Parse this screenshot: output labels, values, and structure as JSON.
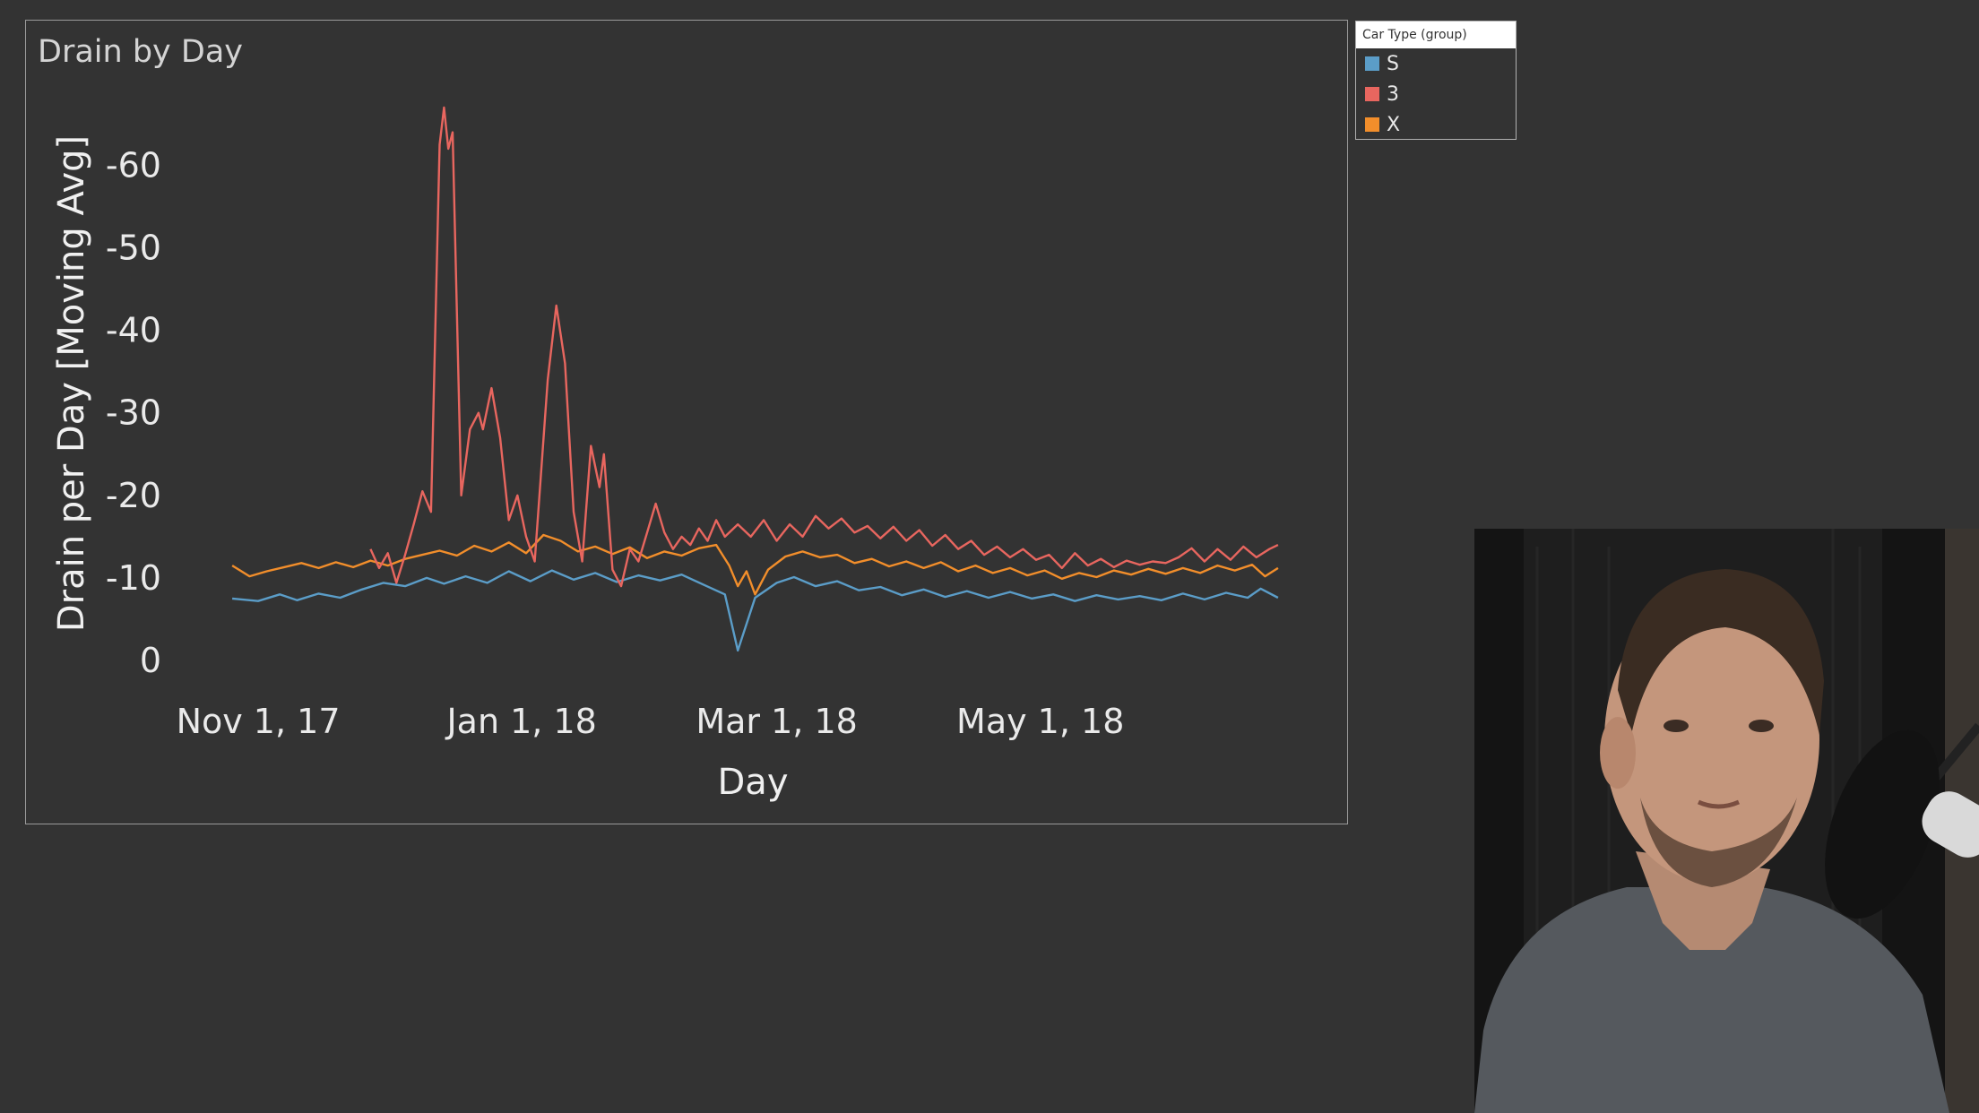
{
  "chart_data": {
    "type": "line",
    "title": "Drain by Day",
    "xlabel": "Day",
    "ylabel": "Drain per Day [Moving Avg]",
    "x_ticks": [
      "Nov 1, 17",
      "Jan 1, 18",
      "Mar 1, 18",
      "May 1, 18"
    ],
    "y_ticks": [
      "-60",
      "-50",
      "-40",
      "-30",
      "-20",
      "-10",
      "0"
    ],
    "y_tick_values": [
      -60,
      -50,
      -40,
      -30,
      -20,
      -10,
      0
    ],
    "ylim": [
      0,
      -67
    ],
    "xlim": [
      "2017-10-21",
      "2018-06-30"
    ],
    "grid": false,
    "legend_position": "top-right",
    "legend_title": "Car Type (group)",
    "series": [
      {
        "name": "S",
        "color": "#5b9dc8",
        "points": [
          [
            "2017-10-26",
            -7.5
          ],
          [
            "2017-11-01",
            -7.2
          ],
          [
            "2017-11-06",
            -8.0
          ],
          [
            "2017-11-10",
            -7.3
          ],
          [
            "2017-11-15",
            -8.1
          ],
          [
            "2017-11-20",
            -7.6
          ],
          [
            "2017-11-25",
            -8.6
          ],
          [
            "2017-11-30",
            -9.4
          ],
          [
            "2017-12-05",
            -9.0
          ],
          [
            "2017-12-10",
            -10.0
          ],
          [
            "2017-12-14",
            -9.3
          ],
          [
            "2017-12-19",
            -10.2
          ],
          [
            "2017-12-24",
            -9.4
          ],
          [
            "2017-12-29",
            -10.8
          ],
          [
            "2018-01-03",
            -9.6
          ],
          [
            "2018-01-08",
            -10.9
          ],
          [
            "2018-01-13",
            -9.8
          ],
          [
            "2018-01-18",
            -10.6
          ],
          [
            "2018-01-23",
            -9.5
          ],
          [
            "2018-01-28",
            -10.3
          ],
          [
            "2018-02-02",
            -9.7
          ],
          [
            "2018-02-07",
            -10.4
          ],
          [
            "2018-02-12",
            -9.2
          ],
          [
            "2018-02-17",
            -8.0
          ],
          [
            "2018-02-20",
            -1.2
          ],
          [
            "2018-02-24",
            -7.6
          ],
          [
            "2018-03-01",
            -9.4
          ],
          [
            "2018-03-05",
            -10.1
          ],
          [
            "2018-03-10",
            -9.0
          ],
          [
            "2018-03-15",
            -9.6
          ],
          [
            "2018-03-20",
            -8.5
          ],
          [
            "2018-03-25",
            -8.9
          ],
          [
            "2018-03-30",
            -7.9
          ],
          [
            "2018-04-04",
            -8.6
          ],
          [
            "2018-04-09",
            -7.7
          ],
          [
            "2018-04-14",
            -8.4
          ],
          [
            "2018-04-19",
            -7.6
          ],
          [
            "2018-04-24",
            -8.3
          ],
          [
            "2018-04-29",
            -7.5
          ],
          [
            "2018-05-04",
            -8.0
          ],
          [
            "2018-05-09",
            -7.2
          ],
          [
            "2018-05-14",
            -7.9
          ],
          [
            "2018-05-19",
            -7.4
          ],
          [
            "2018-05-24",
            -7.8
          ],
          [
            "2018-05-29",
            -7.3
          ],
          [
            "2018-06-03",
            -8.1
          ],
          [
            "2018-06-08",
            -7.4
          ],
          [
            "2018-06-13",
            -8.2
          ],
          [
            "2018-06-18",
            -7.6
          ],
          [
            "2018-06-21",
            -8.7
          ],
          [
            "2018-06-25",
            -7.6
          ]
        ]
      },
      {
        "name": "3",
        "color": "#e8665f",
        "points": [
          [
            "2017-11-27",
            -13.5
          ],
          [
            "2017-11-29",
            -11.2
          ],
          [
            "2017-12-01",
            -13.0
          ],
          [
            "2017-12-03",
            -9.4
          ],
          [
            "2017-12-05",
            -12.8
          ],
          [
            "2017-12-07",
            -16.5
          ],
          [
            "2017-12-09",
            -20.5
          ],
          [
            "2017-12-11",
            -18.0
          ],
          [
            "2017-12-13",
            -62.5
          ],
          [
            "2017-12-14",
            -67.0
          ],
          [
            "2017-12-15",
            -62.0
          ],
          [
            "2017-12-16",
            -64.0
          ],
          [
            "2017-12-18",
            -20.0
          ],
          [
            "2017-12-20",
            -28.0
          ],
          [
            "2017-12-22",
            -30.0
          ],
          [
            "2017-12-23",
            -28.0
          ],
          [
            "2017-12-25",
            -33.0
          ],
          [
            "2017-12-27",
            -27.0
          ],
          [
            "2017-12-29",
            -17.0
          ],
          [
            "2017-12-31",
            -20.0
          ],
          [
            "2018-01-02",
            -15.0
          ],
          [
            "2018-01-04",
            -12.0
          ],
          [
            "2018-01-07",
            -34.0
          ],
          [
            "2018-01-09",
            -43.0
          ],
          [
            "2018-01-11",
            -36.0
          ],
          [
            "2018-01-13",
            -18.0
          ],
          [
            "2018-01-15",
            -12.0
          ],
          [
            "2018-01-17",
            -26.0
          ],
          [
            "2018-01-19",
            -21.0
          ],
          [
            "2018-01-20",
            -25.0
          ],
          [
            "2018-01-22",
            -11.0
          ],
          [
            "2018-01-24",
            -9.0
          ],
          [
            "2018-01-26",
            -13.5
          ],
          [
            "2018-01-28",
            -12.0
          ],
          [
            "2018-01-30",
            -15.5
          ],
          [
            "2018-02-01",
            -19.0
          ],
          [
            "2018-02-03",
            -15.5
          ],
          [
            "2018-02-05",
            -13.5
          ],
          [
            "2018-02-07",
            -15.0
          ],
          [
            "2018-02-09",
            -14.0
          ],
          [
            "2018-02-11",
            -16.0
          ],
          [
            "2018-02-13",
            -14.5
          ],
          [
            "2018-02-15",
            -17.0
          ],
          [
            "2018-02-17",
            -15.0
          ],
          [
            "2018-02-20",
            -16.5
          ],
          [
            "2018-02-23",
            -15.0
          ],
          [
            "2018-02-26",
            -17.0
          ],
          [
            "2018-03-01",
            -14.5
          ],
          [
            "2018-03-04",
            -16.5
          ],
          [
            "2018-03-07",
            -15.0
          ],
          [
            "2018-03-10",
            -17.5
          ],
          [
            "2018-03-13",
            -16.0
          ],
          [
            "2018-03-16",
            -17.2
          ],
          [
            "2018-03-19",
            -15.5
          ],
          [
            "2018-03-22",
            -16.3
          ],
          [
            "2018-03-25",
            -14.8
          ],
          [
            "2018-03-28",
            -16.2
          ],
          [
            "2018-03-31",
            -14.5
          ],
          [
            "2018-04-03",
            -15.8
          ],
          [
            "2018-04-06",
            -13.9
          ],
          [
            "2018-04-09",
            -15.2
          ],
          [
            "2018-04-12",
            -13.5
          ],
          [
            "2018-04-15",
            -14.5
          ],
          [
            "2018-04-18",
            -12.8
          ],
          [
            "2018-04-21",
            -13.8
          ],
          [
            "2018-04-24",
            -12.5
          ],
          [
            "2018-04-27",
            -13.5
          ],
          [
            "2018-04-30",
            -12.2
          ],
          [
            "2018-05-03",
            -12.8
          ],
          [
            "2018-05-06",
            -11.2
          ],
          [
            "2018-05-09",
            -13.0
          ],
          [
            "2018-05-12",
            -11.5
          ],
          [
            "2018-05-15",
            -12.3
          ],
          [
            "2018-05-18",
            -11.3
          ],
          [
            "2018-05-21",
            -12.1
          ],
          [
            "2018-05-24",
            -11.6
          ],
          [
            "2018-05-27",
            -12.0
          ],
          [
            "2018-05-30",
            -11.8
          ],
          [
            "2018-06-02",
            -12.5
          ],
          [
            "2018-06-05",
            -13.6
          ],
          [
            "2018-06-08",
            -12.0
          ],
          [
            "2018-06-11",
            -13.5
          ],
          [
            "2018-06-14",
            -12.2
          ],
          [
            "2018-06-17",
            -13.8
          ],
          [
            "2018-06-20",
            -12.5
          ],
          [
            "2018-06-23",
            -13.5
          ],
          [
            "2018-06-25",
            -14.0
          ]
        ]
      },
      {
        "name": "X",
        "color": "#f28e2b",
        "points": [
          [
            "2017-10-26",
            -11.5
          ],
          [
            "2017-10-30",
            -10.2
          ],
          [
            "2017-11-03",
            -10.8
          ],
          [
            "2017-11-07",
            -11.3
          ],
          [
            "2017-11-11",
            -11.8
          ],
          [
            "2017-11-15",
            -11.2
          ],
          [
            "2017-11-19",
            -11.9
          ],
          [
            "2017-11-23",
            -11.3
          ],
          [
            "2017-11-27",
            -12.1
          ],
          [
            "2017-12-01",
            -11.5
          ],
          [
            "2017-12-05",
            -12.3
          ],
          [
            "2017-12-09",
            -12.8
          ],
          [
            "2017-12-13",
            -13.3
          ],
          [
            "2017-12-17",
            -12.7
          ],
          [
            "2017-12-21",
            -13.9
          ],
          [
            "2017-12-25",
            -13.2
          ],
          [
            "2017-12-29",
            -14.3
          ],
          [
            "2018-01-02",
            -13.0
          ],
          [
            "2018-01-06",
            -15.2
          ],
          [
            "2018-01-10",
            -14.5
          ],
          [
            "2018-01-14",
            -13.2
          ],
          [
            "2018-01-18",
            -13.8
          ],
          [
            "2018-01-22",
            -12.9
          ],
          [
            "2018-01-26",
            -13.7
          ],
          [
            "2018-01-30",
            -12.4
          ],
          [
            "2018-02-03",
            -13.2
          ],
          [
            "2018-02-07",
            -12.7
          ],
          [
            "2018-02-11",
            -13.6
          ],
          [
            "2018-02-15",
            -14.0
          ],
          [
            "2018-02-18",
            -11.5
          ],
          [
            "2018-02-20",
            -9.0
          ],
          [
            "2018-02-22",
            -10.8
          ],
          [
            "2018-02-24",
            -8.0
          ],
          [
            "2018-02-27",
            -11.0
          ],
          [
            "2018-03-03",
            -12.6
          ],
          [
            "2018-03-07",
            -13.2
          ],
          [
            "2018-03-11",
            -12.5
          ],
          [
            "2018-03-15",
            -12.8
          ],
          [
            "2018-03-19",
            -11.8
          ],
          [
            "2018-03-23",
            -12.3
          ],
          [
            "2018-03-27",
            -11.4
          ],
          [
            "2018-03-31",
            -12.0
          ],
          [
            "2018-04-04",
            -11.2
          ],
          [
            "2018-04-08",
            -11.9
          ],
          [
            "2018-04-12",
            -10.8
          ],
          [
            "2018-04-16",
            -11.5
          ],
          [
            "2018-04-20",
            -10.6
          ],
          [
            "2018-04-24",
            -11.2
          ],
          [
            "2018-04-28",
            -10.3
          ],
          [
            "2018-05-02",
            -10.9
          ],
          [
            "2018-05-06",
            -9.9
          ],
          [
            "2018-05-10",
            -10.6
          ],
          [
            "2018-05-14",
            -10.1
          ],
          [
            "2018-05-18",
            -10.9
          ],
          [
            "2018-05-22",
            -10.4
          ],
          [
            "2018-05-26",
            -11.1
          ],
          [
            "2018-05-30",
            -10.5
          ],
          [
            "2018-06-03",
            -11.2
          ],
          [
            "2018-06-07",
            -10.6
          ],
          [
            "2018-06-11",
            -11.5
          ],
          [
            "2018-06-15",
            -10.9
          ],
          [
            "2018-06-19",
            -11.6
          ],
          [
            "2018-06-22",
            -10.2
          ],
          [
            "2018-06-25",
            -11.2
          ]
        ]
      }
    ]
  }
}
